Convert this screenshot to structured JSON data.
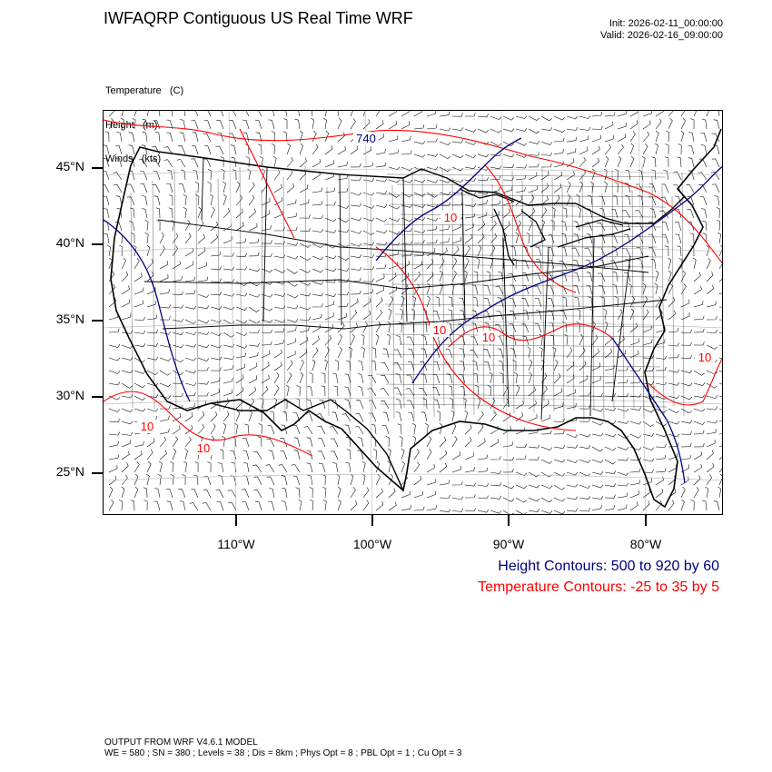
{
  "title": "IWFAQRP Contiguous US Real Time WRF",
  "init": "Init: 2026-02-11_00:00:00",
  "valid": "Valid: 2026-02-16_09:00:00",
  "fields": [
    "Temperature   (C)",
    "Height   (m)",
    "Winds   (kts)"
  ],
  "lat_labels": [
    "45°N",
    "40°N",
    "35°N",
    "30°N",
    "25°N"
  ],
  "lon_labels": [
    "110°W",
    "100°W",
    "90°W",
    "80°W"
  ],
  "contour_labels": {
    "height": [
      "740"
    ],
    "temperature": [
      "10",
      "10",
      "10",
      "10",
      "10",
      "10"
    ]
  },
  "legend": {
    "height": "Height Contours: 500 to 920 by 60",
    "temperature": "Temperature Contours: -25 to 35 by 5"
  },
  "colors": {
    "height": "#000080",
    "temperature": "#ff0000",
    "boundaries": "#000000",
    "wind_barbs": "#000000"
  },
  "footer": {
    "line1": "OUTPUT FROM WRF V4.6.1 MODEL",
    "line2": "WE = 580 ; SN = 380 ; Levels = 38 ; Dis = 8km ; Phys Opt = 8 ; PBL Opt = 1 ; Cu Opt = 3"
  }
}
